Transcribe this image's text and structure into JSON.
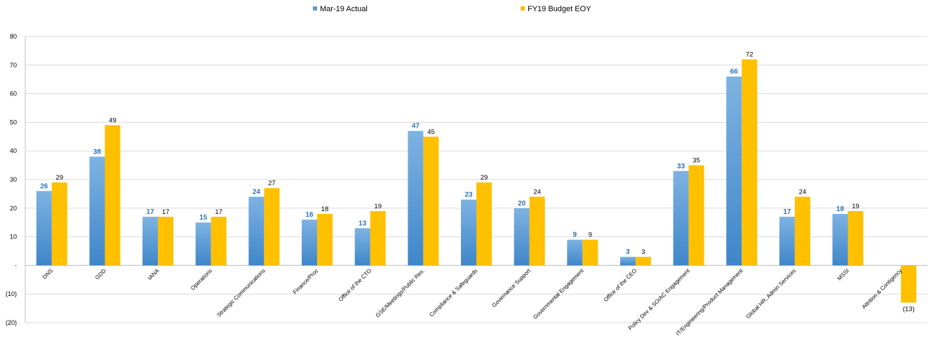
{
  "chart_data": {
    "type": "bar",
    "categories": [
      "DNS",
      "GDD",
      "IANA",
      "Operations",
      "Strategic Communications",
      "Finance/Proc",
      "Office of the CTO",
      "GSE/Meetings/Public Res.",
      "Compliance & Safeguards",
      "Governance Support",
      "Governmental Engagement",
      "Office of the CEO",
      "Policy Dev & SO/AC Engagement",
      "IT/Engineering/Product Management",
      "Global HR, Admin Services",
      "MSSI",
      "Attrition & Contigency"
    ],
    "series": [
      {
        "name": "Mar-19 Actual",
        "color": "#5b9bd5",
        "label_color": "#2e75b6",
        "values": [
          26,
          38,
          17,
          15,
          24,
          16,
          13,
          47,
          23,
          20,
          9,
          3,
          33,
          66,
          17,
          18,
          null
        ],
        "labels": [
          "26",
          "38",
          "17",
          "15",
          "24",
          "16",
          "13",
          "47",
          "23",
          "20",
          "9",
          "3",
          "33",
          "66",
          "17",
          "18",
          ""
        ]
      },
      {
        "name": "FY19 Budget EOY",
        "color": "#ffc000",
        "label_color": "#000000",
        "values": [
          29,
          49,
          17,
          17,
          27,
          18,
          19,
          45,
          29,
          24,
          9,
          3,
          35,
          72,
          24,
          19,
          -13
        ],
        "labels": [
          "29",
          "49",
          "17",
          "17",
          "27",
          "18",
          "19",
          "45",
          "29",
          "24",
          "9",
          "3",
          "35",
          "72",
          "24",
          "19",
          "(13)"
        ]
      }
    ],
    "y_ticks": [
      {
        "value": 80,
        "label": "80"
      },
      {
        "value": 70,
        "label": "70"
      },
      {
        "value": 60,
        "label": "60"
      },
      {
        "value": 50,
        "label": "50"
      },
      {
        "value": 40,
        "label": "40"
      },
      {
        "value": 30,
        "label": "30"
      },
      {
        "value": 20,
        "label": "20"
      },
      {
        "value": 10,
        "label": "10"
      },
      {
        "value": 0,
        "label": "-"
      },
      {
        "value": -10,
        "label": "(10)"
      },
      {
        "value": -20,
        "label": "(20)"
      }
    ],
    "ylim": [
      -20,
      80
    ],
    "grid": true,
    "legend_position": "top-center",
    "title": "",
    "xlabel": "",
    "ylabel": ""
  }
}
